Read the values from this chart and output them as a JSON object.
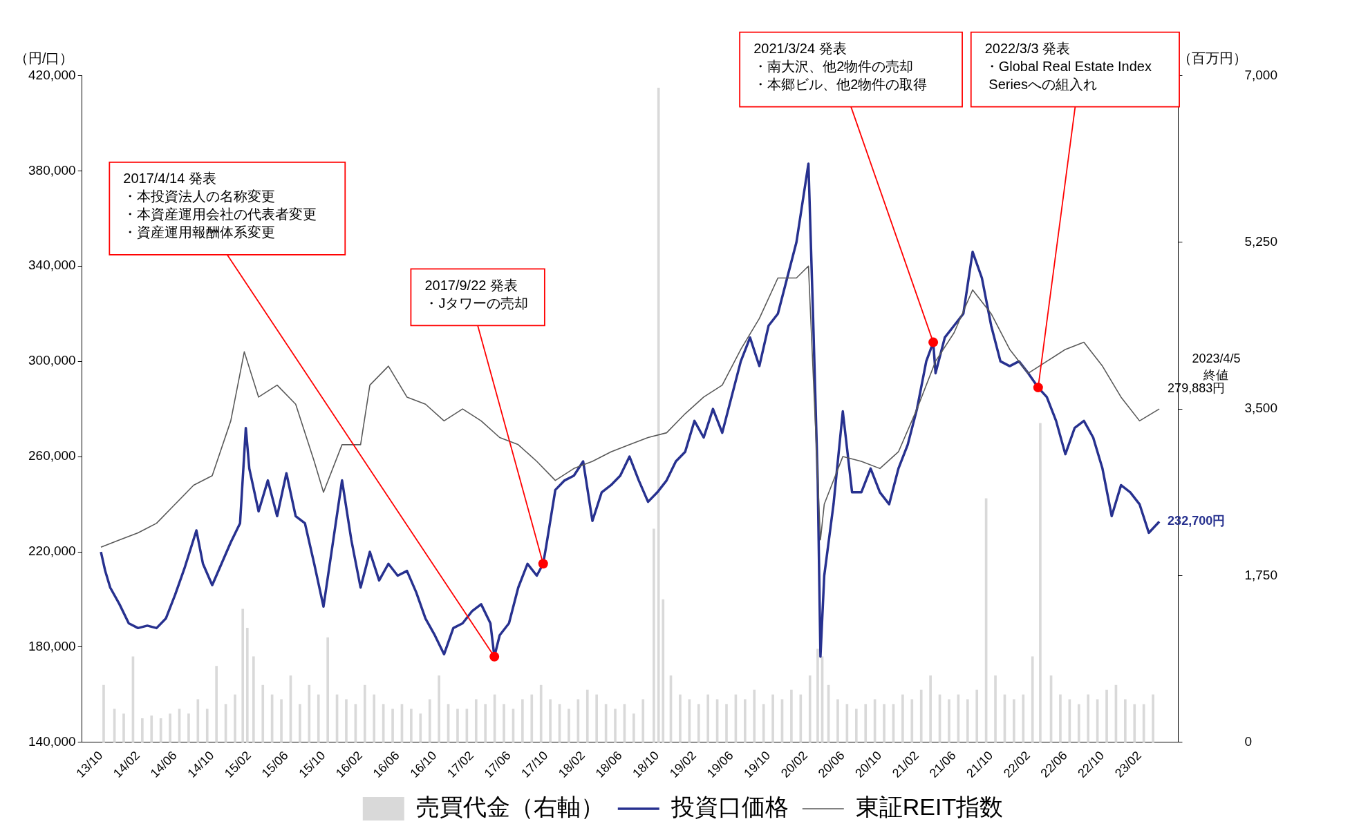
{
  "chart_data": {
    "type": "line",
    "ylabel": "（円/口）",
    "y2label": "（百万円）",
    "xlim": [
      "2013-10-01",
      "2023-04-05"
    ],
    "xticks": [
      {
        "value": "2013-10",
        "label": "13/10"
      },
      {
        "value": "2014-02",
        "label": "14/02"
      },
      {
        "value": "2014-06",
        "label": "14/06"
      },
      {
        "value": "2014-10",
        "label": "14/10"
      },
      {
        "value": "2015-02",
        "label": "15/02"
      },
      {
        "value": "2015-06",
        "label": "15/06"
      },
      {
        "value": "2015-10",
        "label": "15/10"
      },
      {
        "value": "2016-02",
        "label": "16/02"
      },
      {
        "value": "2016-06",
        "label": "16/06"
      },
      {
        "value": "2016-10",
        "label": "16/10"
      },
      {
        "value": "2017-02",
        "label": "17/02"
      },
      {
        "value": "2017-06",
        "label": "17/06"
      },
      {
        "value": "2017-10",
        "label": "17/10"
      },
      {
        "value": "2018-02",
        "label": "18/02"
      },
      {
        "value": "2018-06",
        "label": "18/06"
      },
      {
        "value": "2018-10",
        "label": "18/10"
      },
      {
        "value": "2019-02",
        "label": "19/02"
      },
      {
        "value": "2019-06",
        "label": "19/06"
      },
      {
        "value": "2019-10",
        "label": "19/10"
      },
      {
        "value": "2020-02",
        "label": "20/02"
      },
      {
        "value": "2020-06",
        "label": "20/06"
      },
      {
        "value": "2020-10",
        "label": "20/10"
      },
      {
        "value": "2021-02",
        "label": "21/02"
      },
      {
        "value": "2021-06",
        "label": "21/06"
      },
      {
        "value": "2021-10",
        "label": "21/10"
      },
      {
        "value": "2022-02",
        "label": "22/02"
      },
      {
        "value": "2022-06",
        "label": "22/06"
      },
      {
        "value": "2022-10",
        "label": "22/10"
      },
      {
        "value": "2023-02",
        "label": "23/02"
      }
    ],
    "ylim": [
      140000,
      420000
    ],
    "yticks": [
      {
        "value": 140000,
        "label": "140,000"
      },
      {
        "value": 180000,
        "label": "180,000"
      },
      {
        "value": 220000,
        "label": "220,000"
      },
      {
        "value": 260000,
        "label": "260,000"
      },
      {
        "value": 300000,
        "label": "300,000"
      },
      {
        "value": 340000,
        "label": "340,000"
      },
      {
        "value": 380000,
        "label": "380,000"
      },
      {
        "value": 420000,
        "label": "420,000"
      }
    ],
    "y2lim": [
      0,
      7000
    ],
    "y2ticks": [
      0,
      {
        "value": 1750,
        "label": "1,750"
      },
      {
        "value": 3500,
        "label": "3,500"
      },
      {
        "value": 5250,
        "label": "5,250"
      },
      {
        "value": 7000,
        "label": "7,000"
      }
    ],
    "legend": "bottom",
    "marker": "none",
    "series": [
      {
        "name": "売買代金（右軸）",
        "type": "bar",
        "axis": "y2",
        "color": "#d9d9d9",
        "x": [
          "2013-10-10",
          "2013-11-15",
          "2013-12-15",
          "2014-01-15",
          "2014-02-15",
          "2014-03-15",
          "2014-04-15",
          "2014-05-15",
          "2014-06-15",
          "2014-07-15",
          "2014-08-15",
          "2014-09-15",
          "2014-10-15",
          "2014-11-15",
          "2014-12-15",
          "2015-01-10",
          "2015-01-25",
          "2015-02-15",
          "2015-03-15",
          "2015-04-15",
          "2015-05-15",
          "2015-06-15",
          "2015-07-15",
          "2015-08-15",
          "2015-09-15",
          "2015-10-15",
          "2015-11-15",
          "2015-12-15",
          "2016-01-15",
          "2016-02-15",
          "2016-03-15",
          "2016-04-15",
          "2016-05-15",
          "2016-06-15",
          "2016-07-15",
          "2016-08-15",
          "2016-09-15",
          "2016-10-15",
          "2016-11-15",
          "2016-12-15",
          "2017-01-15",
          "2017-02-15",
          "2017-03-15",
          "2017-04-15",
          "2017-05-15",
          "2017-06-15",
          "2017-07-15",
          "2017-08-15",
          "2017-09-15",
          "2017-10-15",
          "2017-11-15",
          "2017-12-15",
          "2018-01-15",
          "2018-02-15",
          "2018-03-15",
          "2018-04-15",
          "2018-05-15",
          "2018-06-15",
          "2018-07-15",
          "2018-08-15",
          "2018-09-20",
          "2018-10-05",
          "2018-10-20",
          "2018-11-15",
          "2018-12-15",
          "2019-01-15",
          "2019-02-15",
          "2019-03-15",
          "2019-04-15",
          "2019-05-15",
          "2019-06-15",
          "2019-07-15",
          "2019-08-15",
          "2019-09-15",
          "2019-10-15",
          "2019-11-15",
          "2019-12-15",
          "2020-01-15",
          "2020-02-15",
          "2020-03-10",
          "2020-03-25",
          "2020-04-15",
          "2020-05-15",
          "2020-06-15",
          "2020-07-15",
          "2020-08-15",
          "2020-09-15",
          "2020-10-15",
          "2020-11-15",
          "2020-12-15",
          "2021-01-15",
          "2021-02-15",
          "2021-03-15",
          "2021-04-15",
          "2021-05-15",
          "2021-06-15",
          "2021-07-15",
          "2021-08-15",
          "2021-09-15",
          "2021-10-15",
          "2021-11-15",
          "2021-12-15",
          "2022-01-15",
          "2022-02-15",
          "2022-03-10",
          "2022-04-15",
          "2022-05-15",
          "2022-06-15",
          "2022-07-15",
          "2022-08-15",
          "2022-09-15",
          "2022-10-15",
          "2022-11-15",
          "2022-12-15",
          "2023-01-15",
          "2023-02-15",
          "2023-03-15"
        ],
        "values": [
          600,
          350,
          300,
          900,
          250,
          280,
          250,
          300,
          350,
          300,
          450,
          350,
          800,
          400,
          500,
          1400,
          1200,
          900,
          600,
          500,
          450,
          700,
          400,
          600,
          500,
          1100,
          500,
          450,
          400,
          600,
          500,
          400,
          350,
          400,
          350,
          300,
          450,
          700,
          400,
          350,
          350,
          450,
          400,
          500,
          400,
          350,
          450,
          500,
          600,
          450,
          400,
          350,
          450,
          550,
          500,
          400,
          350,
          400,
          300,
          450,
          2240,
          6870,
          1500,
          700,
          500,
          450,
          400,
          500,
          450,
          400,
          500,
          450,
          550,
          400,
          500,
          450,
          550,
          500,
          700,
          980,
          900,
          600,
          450,
          400,
          350,
          400,
          450,
          400,
          400,
          500,
          450,
          550,
          700,
          500,
          450,
          500,
          450,
          550,
          2560,
          700,
          500,
          450,
          500,
          900,
          3350,
          700,
          500,
          450,
          400,
          500,
          450,
          550,
          600,
          450,
          400,
          400,
          500
        ]
      },
      {
        "name": "投資口価格",
        "color": "#27318f",
        "x": [
          "2013-10-01",
          "2013-10-15",
          "2013-11-01",
          "2013-12-01",
          "2014-01-01",
          "2014-02-01",
          "2014-03-01",
          "2014-04-01",
          "2014-05-01",
          "2014-06-01",
          "2014-07-01",
          "2014-08-10",
          "2014-09-01",
          "2014-10-01",
          "2014-11-01",
          "2014-12-01",
          "2015-01-01",
          "2015-01-20",
          "2015-02-01",
          "2015-03-01",
          "2015-04-01",
          "2015-05-01",
          "2015-06-01",
          "2015-07-01",
          "2015-08-01",
          "2015-09-01",
          "2015-10-01",
          "2015-12-01",
          "2016-01-01",
          "2016-02-01",
          "2016-03-01",
          "2016-04-01",
          "2016-05-01",
          "2016-06-01",
          "2016-07-01",
          "2016-08-01",
          "2016-09-01",
          "2016-10-01",
          "2016-11-01",
          "2016-12-01",
          "2017-01-01",
          "2017-02-01",
          "2017-03-01",
          "2017-04-01",
          "2017-04-14",
          "2017-05-01",
          "2017-06-01",
          "2017-07-01",
          "2017-08-01",
          "2017-09-01",
          "2017-09-22",
          "2017-10-01",
          "2017-11-01",
          "2017-12-01",
          "2018-01-01",
          "2018-02-01",
          "2018-03-01",
          "2018-04-01",
          "2018-05-01",
          "2018-06-01",
          "2018-07-01",
          "2018-08-01",
          "2018-09-01",
          "2018-10-01",
          "2018-11-01",
          "2018-12-01",
          "2019-01-01",
          "2019-02-01",
          "2019-03-01",
          "2019-04-01",
          "2019-05-01",
          "2019-06-01",
          "2019-07-01",
          "2019-08-01",
          "2019-09-01",
          "2019-10-01",
          "2019-11-01",
          "2019-12-01",
          "2020-01-01",
          "2020-02-10",
          "2020-02-25",
          "2020-03-10",
          "2020-03-19",
          "2020-04-01",
          "2020-05-01",
          "2020-06-01",
          "2020-07-01",
          "2020-08-01",
          "2020-09-01",
          "2020-10-01",
          "2020-11-01",
          "2020-12-01",
          "2021-01-01",
          "2021-02-01",
          "2021-03-01",
          "2021-03-24",
          "2021-04-01",
          "2021-05-01",
          "2021-06-01",
          "2021-07-01",
          "2021-08-01",
          "2021-09-01",
          "2021-10-01",
          "2021-11-01",
          "2021-12-01",
          "2022-01-01",
          "2022-02-01",
          "2022-03-03",
          "2022-04-01",
          "2022-05-01",
          "2022-06-01",
          "2022-07-01",
          "2022-08-01",
          "2022-09-01",
          "2022-10-01",
          "2022-11-01",
          "2022-12-01",
          "2023-01-01",
          "2023-02-01",
          "2023-03-01",
          "2023-04-05"
        ],
        "values": [
          220000,
          212000,
          205000,
          198000,
          190000,
          188000,
          189000,
          188000,
          192000,
          202000,
          213000,
          229000,
          215000,
          206000,
          215000,
          224000,
          232000,
          272000,
          255000,
          237000,
          250000,
          235000,
          253000,
          235000,
          232000,
          215000,
          197000,
          250000,
          225000,
          205000,
          220000,
          208000,
          215000,
          210000,
          212000,
          203000,
          192000,
          185000,
          177000,
          188000,
          190000,
          195000,
          198000,
          190000,
          176000,
          185000,
          190000,
          205000,
          215000,
          210000,
          215000,
          222000,
          246000,
          250000,
          252000,
          258000,
          233000,
          245000,
          248000,
          252000,
          260000,
          250000,
          241000,
          245000,
          250000,
          258000,
          262000,
          275000,
          268000,
          280000,
          270000,
          285000,
          300000,
          310000,
          298000,
          315000,
          320000,
          335000,
          350000,
          383000,
          320000,
          250000,
          176000,
          210000,
          240000,
          279000,
          245000,
          245000,
          255000,
          245000,
          240000,
          255000,
          265000,
          280000,
          300000,
          308000,
          295000,
          310000,
          315000,
          320000,
          346000,
          335000,
          315000,
          300000,
          298000,
          300000,
          295000,
          289000,
          285000,
          275000,
          261000,
          272000,
          275000,
          268000,
          255000,
          235000,
          248000,
          245000,
          240000,
          228000,
          232700
        ]
      },
      {
        "name": "東証REIT指数",
        "color": "#595959",
        "x": [
          "2013-10-01",
          "2013-12-01",
          "2014-02-01",
          "2014-04-01",
          "2014-06-01",
          "2014-08-01",
          "2014-10-01",
          "2014-12-01",
          "2015-01-15",
          "2015-03-01",
          "2015-05-01",
          "2015-07-01",
          "2015-09-01",
          "2015-10-01",
          "2015-12-01",
          "2016-02-01",
          "2016-03-01",
          "2016-05-01",
          "2016-07-01",
          "2016-09-01",
          "2016-11-01",
          "2017-01-01",
          "2017-03-01",
          "2017-05-01",
          "2017-07-01",
          "2017-09-01",
          "2017-11-01",
          "2018-01-01",
          "2018-03-01",
          "2018-05-01",
          "2018-07-01",
          "2018-09-01",
          "2018-11-01",
          "2019-01-01",
          "2019-03-01",
          "2019-05-01",
          "2019-07-01",
          "2019-09-01",
          "2019-11-01",
          "2020-01-01",
          "2020-02-10",
          "2020-03-19",
          "2020-04-01",
          "2020-06-01",
          "2020-08-01",
          "2020-10-01",
          "2020-12-01",
          "2021-02-01",
          "2021-04-01",
          "2021-06-01",
          "2021-08-01",
          "2021-10-01",
          "2021-12-01",
          "2022-02-01",
          "2022-04-01",
          "2022-06-01",
          "2022-08-01",
          "2022-10-01",
          "2022-12-01",
          "2023-02-01",
          "2023-04-05"
        ],
        "values": [
          222000,
          225000,
          228000,
          232000,
          240000,
          248000,
          252000,
          275000,
          304000,
          285000,
          290000,
          282000,
          258000,
          245000,
          265000,
          265000,
          290000,
          298000,
          285000,
          282000,
          275000,
          280000,
          275000,
          268000,
          265000,
          258000,
          250000,
          255000,
          258000,
          262000,
          265000,
          268000,
          270000,
          278000,
          285000,
          290000,
          305000,
          318000,
          335000,
          335000,
          340000,
          225000,
          240000,
          260000,
          258000,
          255000,
          262000,
          280000,
          300000,
          312000,
          330000,
          320000,
          305000,
          295000,
          300000,
          305000,
          308000,
          298000,
          285000,
          275000,
          280000
        ]
      }
    ],
    "annotations": [
      {
        "text": "2017/4/14 発表・本投資法人の名称変更・本資産運用会社の代表者変更・資産運用報酬体系変更",
        "x": "2017-04-14",
        "y": 176000
      },
      {
        "text": "2017/9/22 発表・Jタワーの売却",
        "x": "2017-09-22",
        "y": 215000
      },
      {
        "text": "2021/3/24 発表・南大沢、他2物件の売却・本郷ビル、他2物件の取得",
        "x": "2021-03-24",
        "y": 308000
      },
      {
        "text": "2022/3/3 発表・Global Real Estate Index Seriesへの組入れ",
        "x": "2022-03-03",
        "y": 289000
      },
      "2023/4/5\n終値",
      {
        "text": "279,883円",
        "x": "2023-04-05",
        "y": 279883
      },
      {
        "text": "232,700円",
        "x": "2023-04-05",
        "y": 232700
      }
    ]
  }
}
